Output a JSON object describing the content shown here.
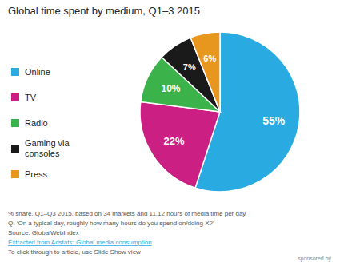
{
  "chart_data": {
    "type": "pie",
    "title": "Global time spent by medium, Q1–3 2015",
    "categories": [
      "Online",
      "TV",
      "Radio",
      "Gaming via\nconsoles",
      "Press"
    ],
    "values": [
      55,
      22,
      10,
      7,
      6
    ],
    "value_labels": [
      "55%",
      "22%",
      "10%",
      "7%",
      "6%"
    ],
    "colors": [
      "#29ABE2",
      "#CC1F83",
      "#3BB34A",
      "#1A1A1A",
      "#E8971E"
    ],
    "data_labels": true,
    "legend": "left",
    "annotations": [
      "% share, Q1–Q3 2015, based on 34 markets and 11.12 hours of media time per day",
      "Q: ‘On a typical day, roughly how many hours do you spend on/doing X?’",
      "Source: GlobalWebIndex",
      "Extracted from Adstats: Global media consumption",
      "To click through to article, use Slide Show view",
      "sponsored by"
    ]
  }
}
